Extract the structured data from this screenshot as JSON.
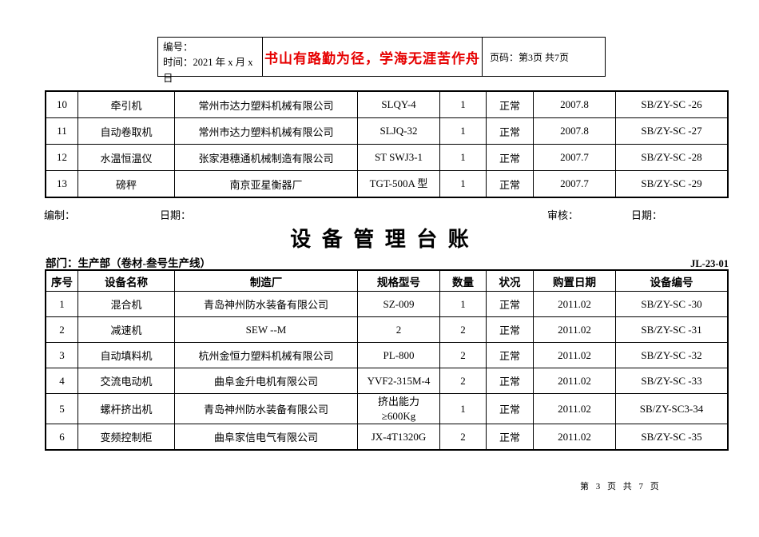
{
  "header": {
    "number_label": "编号：",
    "time_label": "时间：2021 年 x 月 x 日",
    "motto": "书山有路勤为径，学海无涯苦作舟",
    "page_label": "页码：第3页 共7页"
  },
  "sign_row": {
    "prepared_label": "编制：",
    "prepared_date_label": "日期：",
    "reviewed_label": "审核：",
    "reviewed_date_label": "日期："
  },
  "title": "设 备 管 理 台 账",
  "department": "部门：生产部（卷材-叁号生产线）",
  "form_code": "JL-23-01",
  "table_continued": {
    "rows": [
      [
        "10",
        "牵引机",
        "常州市达力塑料机械有限公司",
        "SLQY-4",
        "1",
        "正常",
        "2007.8",
        "SB/ZY-SC -26"
      ],
      [
        "11",
        "自动卷取机",
        "常州市达力塑料机械有限公司",
        "SLJQ-32",
        "1",
        "正常",
        "2007.8",
        "SB/ZY-SC -27"
      ],
      [
        "12",
        "水温恒温仪",
        "张家港穗通机械制造有限公司",
        "ST SWJ3-1",
        "1",
        "正常",
        "2007.7",
        "SB/ZY-SC -28"
      ],
      [
        "13",
        "磅秤",
        "南京亚星衡器厂",
        "TGT-500A 型",
        "1",
        "正常",
        "2007.7",
        "SB/ZY-SC -29"
      ]
    ]
  },
  "main_table": {
    "headers": [
      "序号",
      "设备名称",
      "制造厂",
      "规格型号",
      "数量",
      "状况",
      "购置日期",
      "设备编号"
    ],
    "rows": [
      [
        "1",
        "混合机",
        "青岛神州防水装备有限公司",
        "SZ-009",
        "1",
        "正常",
        "2011.02",
        "SB/ZY-SC -30"
      ],
      [
        "2",
        "减速机",
        "SEW --M",
        "2",
        "2",
        "正常",
        "2011.02",
        "SB/ZY-SC -31"
      ],
      [
        "3",
        "自动填料机",
        "杭州金恒力塑料机械有限公司",
        "PL-800",
        "2",
        "正常",
        "2011.02",
        "SB/ZY-SC -32"
      ],
      [
        "4",
        "交流电动机",
        "曲阜金升电机有限公司",
        "YVF2-315M-4",
        "2",
        "正常",
        "2011.02",
        "SB/ZY-SC -33"
      ],
      [
        "5",
        "螺杆挤出机",
        "青岛神州防水装备有限公司",
        "挤出能力\n≥600Kg",
        "1",
        "正常",
        "2011.02",
        "SB/ZY-SC3-34"
      ],
      [
        "6",
        "变频控制柜",
        "曲阜家信电气有限公司",
        "JX-4T1320G",
        "2",
        "正常",
        "2011.02",
        "SB/ZY-SC -35"
      ]
    ]
  },
  "footer": "第 3 页 共 7 页",
  "colors": {
    "motto_red": "#e60000",
    "text": "#000000",
    "border": "#000000"
  }
}
